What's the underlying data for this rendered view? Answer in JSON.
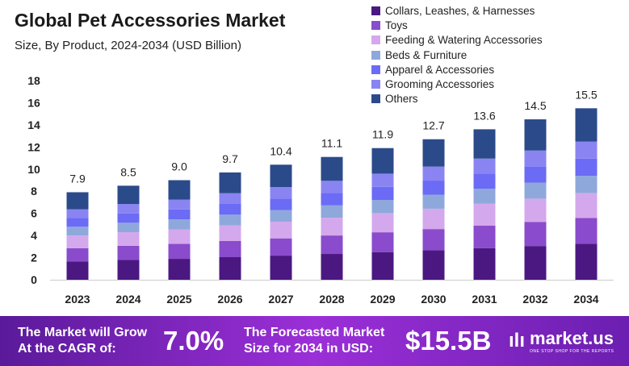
{
  "title": "Global Pet Accessories Market",
  "subtitle": "Size, By Product, 2024-2034 (USD Billion)",
  "chart_data": {
    "type": "bar",
    "stacked": true,
    "categories": [
      "2023",
      "2024",
      "2025",
      "2026",
      "2027",
      "2028",
      "2029",
      "2030",
      "2031",
      "2032",
      "2034"
    ],
    "totals": [
      7.9,
      8.5,
      9.0,
      9.7,
      10.4,
      11.1,
      11.9,
      12.7,
      13.6,
      14.5,
      15.5
    ],
    "total_labels": [
      "7.9",
      "8.5",
      "9.0",
      "9.7",
      "10.4",
      "11.1",
      "11.9",
      "12.7",
      "13.6",
      "14.5",
      "15.5"
    ],
    "ylim": [
      0,
      18
    ],
    "yticks": [
      "0",
      "2",
      "4",
      "6",
      "8",
      "10",
      "12",
      "14",
      "16",
      "18"
    ],
    "grid": false,
    "legend_position": "top-right",
    "series": [
      {
        "name": "Collars, Leashes, & Harnesses",
        "color": "#4b1882",
        "values": [
          1.66,
          1.79,
          1.89,
          2.04,
          2.18,
          2.33,
          2.5,
          2.67,
          2.86,
          3.05,
          3.26
        ]
      },
      {
        "name": "Toys",
        "color": "#8a4bcc",
        "values": [
          1.19,
          1.28,
          1.35,
          1.46,
          1.56,
          1.67,
          1.79,
          1.91,
          2.04,
          2.18,
          2.33
        ]
      },
      {
        "name": "Feeding & Watering Accessories",
        "color": "#d4a8ec",
        "values": [
          1.15,
          1.23,
          1.31,
          1.41,
          1.51,
          1.61,
          1.73,
          1.84,
          1.97,
          2.1,
          2.25
        ]
      },
      {
        "name": "Beds & Furniture",
        "color": "#8fa8dc",
        "values": [
          0.79,
          0.85,
          0.9,
          0.97,
          1.04,
          1.11,
          1.19,
          1.27,
          1.36,
          1.45,
          1.55
        ]
      },
      {
        "name": "Apparel & Accessories",
        "color": "#6b6bf5",
        "values": [
          0.79,
          0.85,
          0.9,
          0.97,
          1.04,
          1.11,
          1.19,
          1.27,
          1.36,
          1.45,
          1.55
        ]
      },
      {
        "name": "Grooming Accessories",
        "color": "#8a84f2",
        "values": [
          0.79,
          0.85,
          0.9,
          0.97,
          1.04,
          1.11,
          1.19,
          1.27,
          1.36,
          1.45,
          1.55
        ]
      },
      {
        "name": "Others",
        "color": "#2b4a8a",
        "values": [
          1.54,
          1.65,
          1.75,
          1.88,
          2.03,
          2.16,
          2.31,
          2.47,
          2.65,
          2.82,
          3.01
        ]
      }
    ]
  },
  "banner": {
    "cagr_text_1": "The Market will Grow",
    "cagr_text_2": "At the CAGR of:",
    "cagr": "7.0%",
    "forecast_text_1": "The Forecasted Market",
    "forecast_text_2": "Size for 2034 in USD:",
    "forecast": "$15.5B",
    "logo": "market.us",
    "logo_tagline": "ONE STOP SHOP FOR THE REPORTS"
  }
}
